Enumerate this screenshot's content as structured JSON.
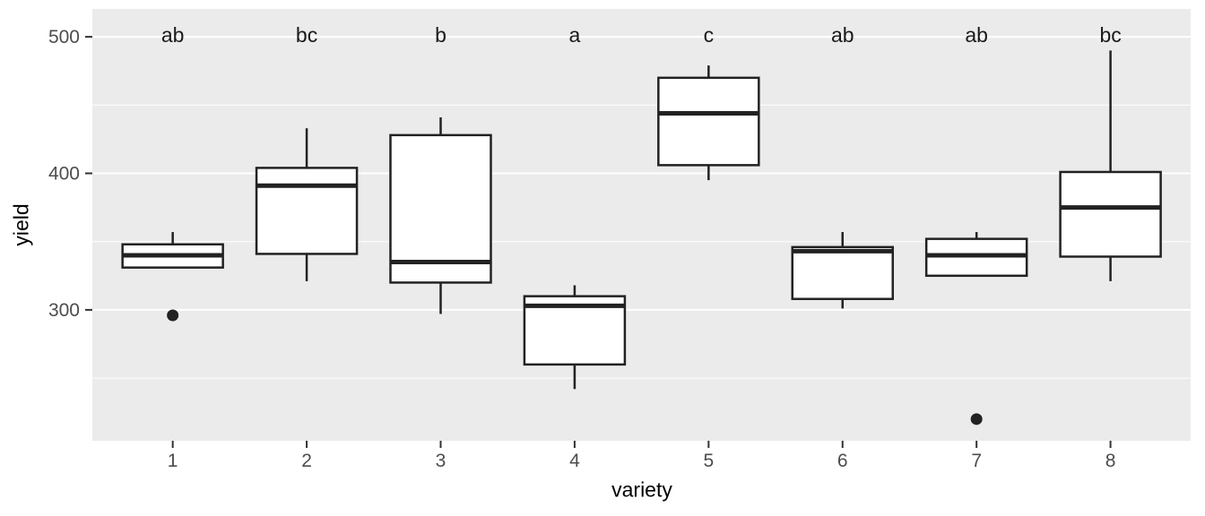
{
  "chart_data": {
    "type": "boxplot",
    "title": "",
    "xlabel": "variety",
    "ylabel": "yield",
    "categories": [
      "1",
      "2",
      "3",
      "4",
      "5",
      "6",
      "7",
      "8"
    ],
    "y_major_ticks": [
      300,
      400,
      500
    ],
    "y_minor_gridlines": [
      250,
      350,
      450
    ],
    "ylim": [
      204,
      520
    ],
    "legend": "none",
    "grid": "major-and-minor-white-on-grey-panel",
    "boxes": [
      {
        "variety": "1",
        "letter": "ab",
        "whisker_low": 331,
        "q1": 331,
        "median": 340,
        "q3": 348,
        "whisker_high": 357,
        "outliers": [
          296
        ]
      },
      {
        "variety": "2",
        "letter": "bc",
        "whisker_low": 321,
        "q1": 341,
        "median": 391,
        "q3": 404,
        "whisker_high": 433,
        "outliers": []
      },
      {
        "variety": "3",
        "letter": "b",
        "whisker_low": 297,
        "q1": 320,
        "median": 335,
        "q3": 428,
        "whisker_high": 441,
        "outliers": []
      },
      {
        "variety": "4",
        "letter": "a",
        "whisker_low": 242,
        "q1": 260,
        "median": 303,
        "q3": 310,
        "whisker_high": 318,
        "outliers": []
      },
      {
        "variety": "5",
        "letter": "c",
        "whisker_low": 395,
        "q1": 406,
        "median": 444,
        "q3": 470,
        "whisker_high": 479,
        "outliers": []
      },
      {
        "variety": "6",
        "letter": "ab",
        "whisker_low": 301,
        "q1": 308,
        "median": 343,
        "q3": 346,
        "whisker_high": 357,
        "outliers": []
      },
      {
        "variety": "7",
        "letter": "ab",
        "whisker_low": 325,
        "q1": 325,
        "median": 340,
        "q3": 352,
        "whisker_high": 357,
        "outliers": [
          220
        ]
      },
      {
        "variety": "8",
        "letter": "bc",
        "whisker_low": 321,
        "q1": 339,
        "median": 375,
        "q3": 401,
        "whisker_high": 490,
        "outliers": []
      }
    ],
    "colors": {
      "panel_background": "#EBEBEB",
      "gridline": "#FFFFFF",
      "box_stroke": "#222222",
      "box_fill": "#FFFFFF",
      "median_stroke": "#222222",
      "outlier_fill": "#222222",
      "tick_label": "#4D4D4D",
      "tick_mark": "#333333",
      "axis_title": "#000000",
      "letter_color": "#1A1A1A"
    }
  }
}
